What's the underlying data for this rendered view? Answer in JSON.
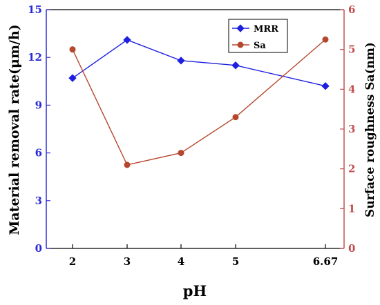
{
  "chart_data": {
    "type": "line",
    "x": [
      "2",
      "3",
      "4",
      "5",
      "6.67"
    ],
    "xlabel": "pH",
    "y_left": {
      "label": "Material removal rate(μm/h)",
      "lim": [
        0,
        15
      ],
      "ticks": [
        "0",
        "3",
        "6",
        "9",
        "12",
        "15"
      ],
      "color": "#2b2bd6"
    },
    "y_right": {
      "label": "Surface roughness Sa(nm)",
      "lim": [
        0,
        6
      ],
      "ticks": [
        "0",
        "1",
        "2",
        "3",
        "4",
        "5",
        "6"
      ],
      "color": "#c0504d"
    },
    "series": [
      {
        "name": "MRR",
        "axis": "left",
        "values": [
          10.7,
          13.1,
          11.8,
          11.5,
          10.2
        ],
        "color": "#1f1fe0",
        "marker": "diamond"
      },
      {
        "name": "Sa",
        "axis": "right",
        "values": [
          5.0,
          2.1,
          2.4,
          3.3,
          5.25
        ],
        "color": "#b5472f",
        "marker": "circle"
      }
    ],
    "legend": {
      "placement": "top-right"
    }
  }
}
